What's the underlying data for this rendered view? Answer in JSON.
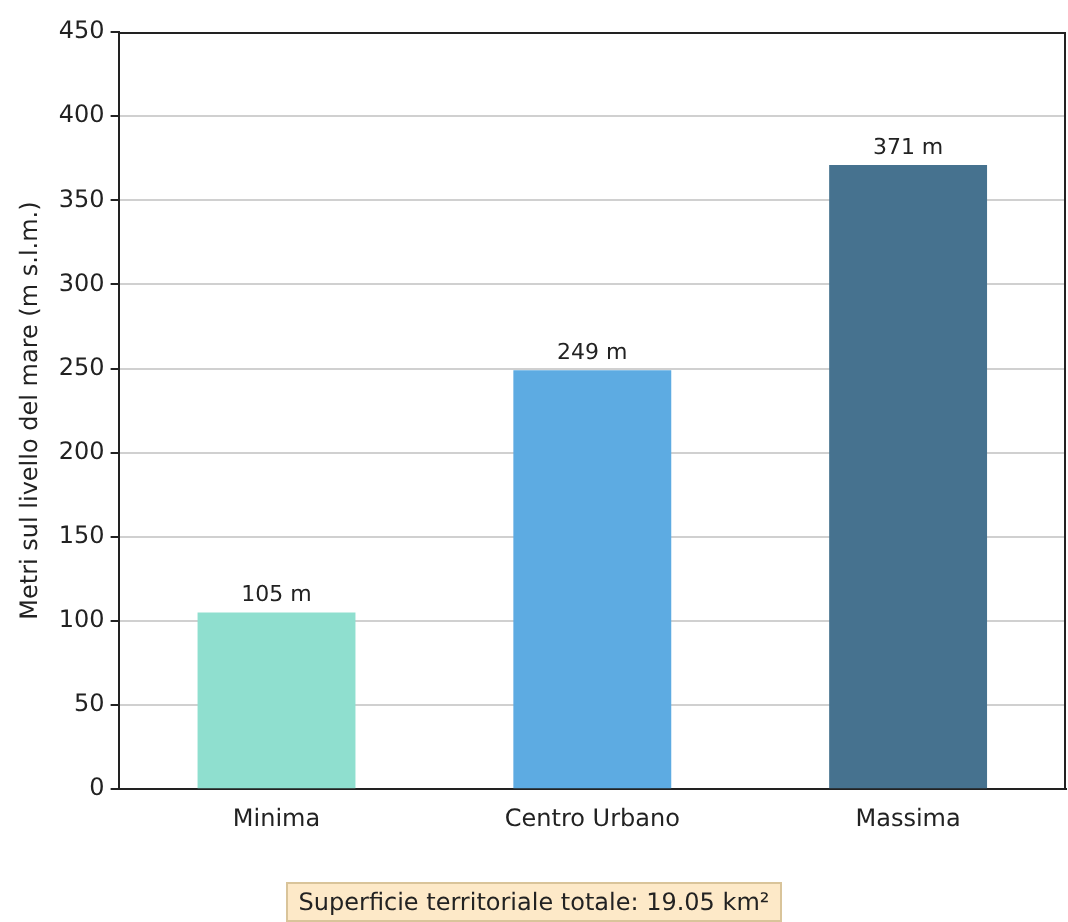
{
  "chart_data": {
    "type": "bar",
    "ylabel": "Metri sul livello del mare (m s.l.m.)",
    "categories": [
      "Minima",
      "Centro Urbano",
      "Massima"
    ],
    "values": [
      105,
      249,
      371
    ],
    "colors": [
      "#8fdfcf",
      "#5dabe2",
      "#46728f"
    ],
    "value_labels": [
      "105 m",
      "249 m",
      "371 m"
    ],
    "ylim": [
      0,
      450
    ],
    "yticks": [
      0,
      50,
      100,
      150,
      200,
      250,
      300,
      350,
      400,
      450
    ],
    "grid": "y",
    "annotations": [
      "Superficie territoriale totale: 19.05 km²"
    ]
  }
}
